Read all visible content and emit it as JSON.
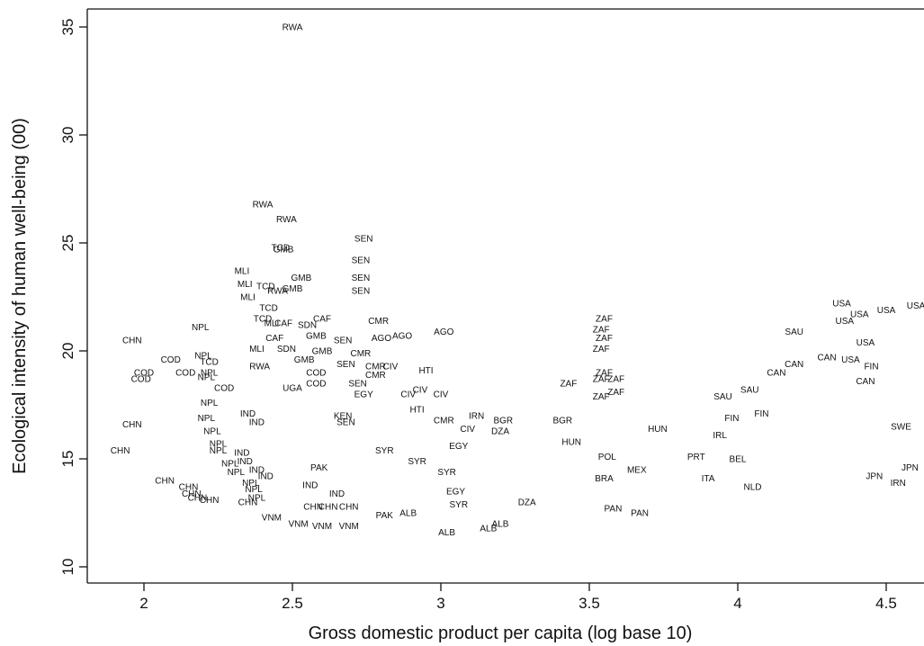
{
  "chart_data": {
    "type": "scatter",
    "marker": "country-code-text",
    "title": "",
    "xlabel": "Gross domestic product per capita (log base 10)",
    "ylabel": "Ecological intensity of human well-being (00)",
    "xlim": [
      1.89,
      4.62
    ],
    "ylim": [
      9.4,
      35.7
    ],
    "xticks": [
      2,
      2.5,
      3,
      3.5,
      4,
      4.5
    ],
    "xtick_labels": [
      "2",
      "2.5",
      "3",
      "3.5",
      "4",
      "4.5"
    ],
    "yticks": [
      10,
      15,
      20,
      25,
      30,
      35
    ],
    "ytick_labels": [
      "10",
      "15",
      "20",
      "25",
      "30",
      "35"
    ],
    "grid": false,
    "points": [
      {
        "label": "RWA",
        "x": 2.5,
        "y": 35.0
      },
      {
        "label": "RWA",
        "x": 2.4,
        "y": 26.8
      },
      {
        "label": "RWA",
        "x": 2.48,
        "y": 26.1
      },
      {
        "label": "TCD",
        "x": 2.46,
        "y": 24.8
      },
      {
        "label": "GMB",
        "x": 2.47,
        "y": 24.7
      },
      {
        "label": "SEN",
        "x": 2.74,
        "y": 25.2
      },
      {
        "label": "SEN",
        "x": 2.73,
        "y": 24.2
      },
      {
        "label": "SEN",
        "x": 2.73,
        "y": 23.4
      },
      {
        "label": "SEN",
        "x": 2.73,
        "y": 22.8
      },
      {
        "label": "MLI",
        "x": 2.33,
        "y": 23.7
      },
      {
        "label": "MLI",
        "x": 2.34,
        "y": 23.1
      },
      {
        "label": "TCD",
        "x": 2.41,
        "y": 23.0
      },
      {
        "label": "GMB",
        "x": 2.53,
        "y": 23.4
      },
      {
        "label": "GMB",
        "x": 2.5,
        "y": 22.9
      },
      {
        "label": "RWA",
        "x": 2.45,
        "y": 22.8
      },
      {
        "label": "MLI",
        "x": 2.35,
        "y": 22.5
      },
      {
        "label": "TCD",
        "x": 2.42,
        "y": 22.0
      },
      {
        "label": "TCD",
        "x": 2.4,
        "y": 21.5
      },
      {
        "label": "CAF",
        "x": 2.6,
        "y": 21.5
      },
      {
        "label": "MLI",
        "x": 2.43,
        "y": 21.3
      },
      {
        "label": "CAF",
        "x": 2.47,
        "y": 21.3
      },
      {
        "label": "SDN",
        "x": 2.55,
        "y": 21.2
      },
      {
        "label": "CMR",
        "x": 2.79,
        "y": 21.4
      },
      {
        "label": "NPL",
        "x": 2.19,
        "y": 21.1
      },
      {
        "label": "CHN",
        "x": 1.96,
        "y": 20.5
      },
      {
        "label": "CAF",
        "x": 2.44,
        "y": 20.6
      },
      {
        "label": "GMB",
        "x": 2.58,
        "y": 20.7
      },
      {
        "label": "SEN",
        "x": 2.67,
        "y": 20.5
      },
      {
        "label": "AGO",
        "x": 2.8,
        "y": 20.6
      },
      {
        "label": "AGO",
        "x": 2.87,
        "y": 20.7
      },
      {
        "label": "AGO",
        "x": 3.01,
        "y": 20.9
      },
      {
        "label": "GMB",
        "x": 2.6,
        "y": 20.0
      },
      {
        "label": "CMR",
        "x": 2.73,
        "y": 19.9
      },
      {
        "label": "COD",
        "x": 2.09,
        "y": 19.6
      },
      {
        "label": "NPL",
        "x": 2.2,
        "y": 19.8
      },
      {
        "label": "MLI",
        "x": 2.38,
        "y": 20.1
      },
      {
        "label": "SDN",
        "x": 2.48,
        "y": 20.1
      },
      {
        "label": "GMB",
        "x": 2.54,
        "y": 19.6
      },
      {
        "label": "SEN",
        "x": 2.68,
        "y": 19.4
      },
      {
        "label": "CMR",
        "x": 2.78,
        "y": 19.3
      },
      {
        "label": "CIV",
        "x": 2.83,
        "y": 19.3
      },
      {
        "label": "CMR",
        "x": 2.78,
        "y": 18.9
      },
      {
        "label": "HTI",
        "x": 2.95,
        "y": 19.1
      },
      {
        "label": "COD",
        "x": 2.0,
        "y": 19.0
      },
      {
        "label": "COD",
        "x": 1.99,
        "y": 18.7
      },
      {
        "label": "COD",
        "x": 2.14,
        "y": 19.0
      },
      {
        "label": "NPL",
        "x": 2.22,
        "y": 19.0
      },
      {
        "label": "TCD",
        "x": 2.22,
        "y": 19.5
      },
      {
        "label": "RWA",
        "x": 2.39,
        "y": 19.3
      },
      {
        "label": "COD",
        "x": 2.58,
        "y": 19.0
      },
      {
        "label": "NPL",
        "x": 2.21,
        "y": 18.8
      },
      {
        "label": "COD",
        "x": 2.27,
        "y": 18.3
      },
      {
        "label": "COD",
        "x": 2.58,
        "y": 18.5
      },
      {
        "label": "SEN",
        "x": 2.72,
        "y": 18.5
      },
      {
        "label": "UGA",
        "x": 2.5,
        "y": 18.3
      },
      {
        "label": "EGY",
        "x": 2.74,
        "y": 18.0
      },
      {
        "label": "CIV",
        "x": 2.89,
        "y": 18.0
      },
      {
        "label": "CIV",
        "x": 2.93,
        "y": 18.2
      },
      {
        "label": "CIV",
        "x": 3.0,
        "y": 18.0
      },
      {
        "label": "ZAF",
        "x": 3.43,
        "y": 18.5
      },
      {
        "label": "ZAF",
        "x": 3.55,
        "y": 21.5
      },
      {
        "label": "ZAF",
        "x": 3.54,
        "y": 21.0
      },
      {
        "label": "ZAF",
        "x": 3.55,
        "y": 20.6
      },
      {
        "label": "ZAF",
        "x": 3.54,
        "y": 20.1
      },
      {
        "label": "ZAF",
        "x": 3.55,
        "y": 19.0
      },
      {
        "label": "ZAF",
        "x": 3.54,
        "y": 18.7
      },
      {
        "label": "ZAF",
        "x": 3.59,
        "y": 18.7
      },
      {
        "label": "ZAF",
        "x": 3.59,
        "y": 18.1
      },
      {
        "label": "ZAF",
        "x": 3.54,
        "y": 17.9
      },
      {
        "label": "NPL",
        "x": 2.22,
        "y": 17.6
      },
      {
        "label": "CHN",
        "x": 1.96,
        "y": 16.6
      },
      {
        "label": "NPL",
        "x": 2.21,
        "y": 16.9
      },
      {
        "label": "NPL",
        "x": 2.23,
        "y": 16.3
      },
      {
        "label": "IND",
        "x": 2.38,
        "y": 16.7
      },
      {
        "label": "IND",
        "x": 2.35,
        "y": 17.1
      },
      {
        "label": "KEN",
        "x": 2.67,
        "y": 17.0
      },
      {
        "label": "SEN",
        "x": 2.68,
        "y": 16.7
      },
      {
        "label": "HTI",
        "x": 2.92,
        "y": 17.3
      },
      {
        "label": "CMR",
        "x": 3.01,
        "y": 16.8
      },
      {
        "label": "CIV",
        "x": 3.09,
        "y": 16.4
      },
      {
        "label": "IRN",
        "x": 3.12,
        "y": 17.0
      },
      {
        "label": "CHN",
        "x": 1.92,
        "y": 15.4
      },
      {
        "label": "NPL",
        "x": 2.25,
        "y": 15.7
      },
      {
        "label": "NPL",
        "x": 2.25,
        "y": 15.4
      },
      {
        "label": "IND",
        "x": 2.33,
        "y": 15.3
      },
      {
        "label": "IND",
        "x": 2.34,
        "y": 14.9
      },
      {
        "label": "NPL",
        "x": 2.29,
        "y": 14.8
      },
      {
        "label": "NPL",
        "x": 2.31,
        "y": 14.4
      },
      {
        "label": "IND",
        "x": 2.38,
        "y": 14.5
      },
      {
        "label": "IND",
        "x": 2.41,
        "y": 14.2
      },
      {
        "label": "SYR",
        "x": 2.81,
        "y": 15.4
      },
      {
        "label": "SYR",
        "x": 2.92,
        "y": 14.9
      },
      {
        "label": "SYR",
        "x": 3.02,
        "y": 14.4
      },
      {
        "label": "PAK",
        "x": 2.59,
        "y": 14.6
      },
      {
        "label": "CHN",
        "x": 2.07,
        "y": 14.0
      },
      {
        "label": "CHN",
        "x": 2.15,
        "y": 13.7
      },
      {
        "label": "CHN",
        "x": 2.16,
        "y": 13.4
      },
      {
        "label": "CHN",
        "x": 2.18,
        "y": 13.2
      },
      {
        "label": "CHN",
        "x": 2.22,
        "y": 13.1
      },
      {
        "label": "NPL",
        "x": 2.36,
        "y": 13.9
      },
      {
        "label": "NPL",
        "x": 2.37,
        "y": 13.6
      },
      {
        "label": "NPL",
        "x": 2.38,
        "y": 13.2
      },
      {
        "label": "IND",
        "x": 2.56,
        "y": 13.8
      },
      {
        "label": "IND",
        "x": 2.65,
        "y": 13.4
      },
      {
        "label": "CHN",
        "x": 2.35,
        "y": 13.0
      },
      {
        "label": "CHN",
        "x": 2.57,
        "y": 12.8
      },
      {
        "label": "CHN",
        "x": 2.62,
        "y": 12.8
      },
      {
        "label": "CHN",
        "x": 2.69,
        "y": 12.8
      },
      {
        "label": "VNM",
        "x": 2.43,
        "y": 12.3
      },
      {
        "label": "VNM",
        "x": 2.52,
        "y": 12.0
      },
      {
        "label": "VNM",
        "x": 2.6,
        "y": 11.9
      },
      {
        "label": "VNM",
        "x": 2.69,
        "y": 11.9
      },
      {
        "label": "PAK",
        "x": 2.81,
        "y": 12.4
      },
      {
        "label": "ALB",
        "x": 2.89,
        "y": 12.5
      },
      {
        "label": "ALB",
        "x": 3.02,
        "y": 11.6
      },
      {
        "label": "ALB",
        "x": 3.16,
        "y": 11.8
      },
      {
        "label": "ALB",
        "x": 3.2,
        "y": 12.0
      },
      {
        "label": "EGY",
        "x": 3.06,
        "y": 15.6
      },
      {
        "label": "EGY",
        "x": 3.05,
        "y": 13.5
      },
      {
        "label": "SYR",
        "x": 3.06,
        "y": 12.9
      },
      {
        "label": "DZA",
        "x": 3.29,
        "y": 13.0
      },
      {
        "label": "DZA",
        "x": 3.2,
        "y": 16.3
      },
      {
        "label": "BGR",
        "x": 3.21,
        "y": 16.8
      },
      {
        "label": "BGR",
        "x": 3.41,
        "y": 16.8
      },
      {
        "label": "HUN",
        "x": 3.44,
        "y": 15.8
      },
      {
        "label": "POL",
        "x": 3.56,
        "y": 15.1
      },
      {
        "label": "BRA",
        "x": 3.55,
        "y": 14.1
      },
      {
        "label": "PAN",
        "x": 3.58,
        "y": 12.7
      },
      {
        "label": "PAN",
        "x": 3.67,
        "y": 12.5
      },
      {
        "label": "MEX",
        "x": 3.66,
        "y": 14.5
      },
      {
        "label": "HUN",
        "x": 3.73,
        "y": 16.4
      },
      {
        "label": "PRT",
        "x": 3.86,
        "y": 15.1
      },
      {
        "label": "IRL",
        "x": 3.94,
        "y": 16.1
      },
      {
        "label": "ITA",
        "x": 3.9,
        "y": 14.1
      },
      {
        "label": "NLD",
        "x": 4.05,
        "y": 13.7
      },
      {
        "label": "BEL",
        "x": 4.0,
        "y": 15.0
      },
      {
        "label": "SAU",
        "x": 3.95,
        "y": 17.9
      },
      {
        "label": "SAU",
        "x": 4.04,
        "y": 18.2
      },
      {
        "label": "SAU",
        "x": 4.19,
        "y": 20.9
      },
      {
        "label": "FIN",
        "x": 3.98,
        "y": 16.9
      },
      {
        "label": "FIN",
        "x": 4.08,
        "y": 17.1
      },
      {
        "label": "FIN",
        "x": 4.45,
        "y": 19.3
      },
      {
        "label": "CAN",
        "x": 4.13,
        "y": 19.0
      },
      {
        "label": "CAN",
        "x": 4.19,
        "y": 19.4
      },
      {
        "label": "CAN",
        "x": 4.3,
        "y": 19.7
      },
      {
        "label": "CAN",
        "x": 4.43,
        "y": 18.6
      },
      {
        "label": "USA",
        "x": 4.35,
        "y": 22.2
      },
      {
        "label": "USA",
        "x": 4.41,
        "y": 21.7
      },
      {
        "label": "USA",
        "x": 4.36,
        "y": 21.4
      },
      {
        "label": "USA",
        "x": 4.43,
        "y": 20.4
      },
      {
        "label": "USA",
        "x": 4.5,
        "y": 21.9
      },
      {
        "label": "USA",
        "x": 4.6,
        "y": 22.1
      },
      {
        "label": "USA",
        "x": 4.38,
        "y": 19.6
      },
      {
        "label": "SWE",
        "x": 4.55,
        "y": 16.5
      },
      {
        "label": "JPN",
        "x": 4.58,
        "y": 14.6
      },
      {
        "label": "JPN",
        "x": 4.46,
        "y": 14.2
      },
      {
        "label": "IRN",
        "x": 4.54,
        "y": 13.9
      }
    ]
  }
}
